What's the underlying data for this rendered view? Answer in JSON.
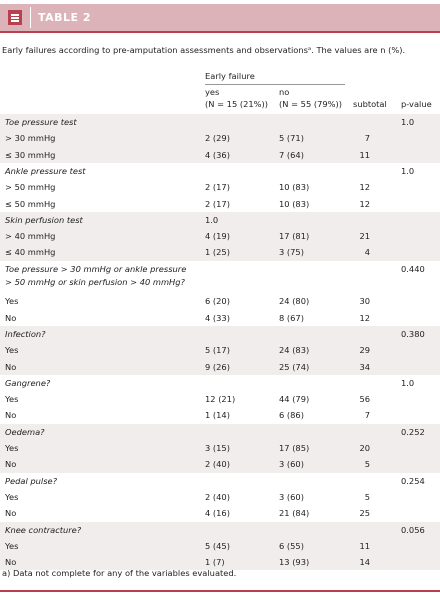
{
  "header": {
    "title": "TABLE 2"
  },
  "caption": "Early failures according to pre-amputation assessments and observationsᵃ. The values are n (%).",
  "table": {
    "column_group": "Early failure",
    "columns": {
      "yes": [
        "yes",
        "(N = 15 (21%))"
      ],
      "no": [
        "no",
        "(N = 55 (79%))"
      ],
      "subtotal": "subtotal",
      "p": "p-value"
    },
    "groups": [
      {
        "title": [
          "Toe pressure test"
        ],
        "p": "1.0",
        "rows": [
          {
            "label": "> 30 mmHg",
            "yes": "2 (29)",
            "no": "5 (71)",
            "subtotal": "7"
          },
          {
            "label": "≤ 30 mmHg",
            "yes": "4 (36)",
            "no": "7 (64)",
            "subtotal": "11"
          }
        ]
      },
      {
        "title": [
          "Ankle pressure test"
        ],
        "p": "1.0",
        "rows": [
          {
            "label": "> 50 mmHg",
            "yes": "2 (17)",
            "no": "10 (83)",
            "subtotal": "12"
          },
          {
            "label": "≤ 50 mmHg",
            "yes": "2 (17)",
            "no": "10 (83)",
            "subtotal": "12"
          }
        ]
      },
      {
        "title": [
          "Skin perfusion test"
        ],
        "yes": "1.0",
        "rows": [
          {
            "label": "> 40 mmHg",
            "yes": "4 (19)",
            "no": "17 (81)",
            "subtotal": "21"
          },
          {
            "label": "≤ 40 mmHg",
            "yes": "1 (25)",
            "no": "3 (75)",
            "subtotal": "4"
          }
        ]
      },
      {
        "title": [
          "Toe pressure > 30 mmHg or ankle pressure",
          "> 50 mmHg or skin perfusion > 40 mmHg?"
        ],
        "p": "0.440",
        "rows": [
          {
            "label": "Yes",
            "yes": "6 (20)",
            "no": "24 (80)",
            "subtotal": "30"
          },
          {
            "label": "No",
            "yes": "4 (33)",
            "no": "8 (67)",
            "subtotal": "12"
          }
        ]
      },
      {
        "title": [
          "Infection?"
        ],
        "p": "0.380",
        "rows": [
          {
            "label": "Yes",
            "yes": "5 (17)",
            "no": "24 (83)",
            "subtotal": "29"
          },
          {
            "label": "No",
            "yes": "9 (26)",
            "no": "25 (74)",
            "subtotal": "34"
          }
        ]
      },
      {
        "title": [
          "Gangrene?"
        ],
        "p": "1.0",
        "rows": [
          {
            "label": "Yes",
            "yes": "12 (21)",
            "no": "44 (79)",
            "subtotal": "56"
          },
          {
            "label": "No",
            "yes": "1 (14)",
            "no": "6 (86)",
            "subtotal": "7"
          }
        ]
      },
      {
        "title": [
          "Oedema?"
        ],
        "p": "0.252",
        "rows": [
          {
            "label": "Yes",
            "yes": "3 (15)",
            "no": "17 (85)",
            "subtotal": "20"
          },
          {
            "label": "No",
            "yes": "2 (40)",
            "no": "3 (60)",
            "subtotal": "5"
          }
        ]
      },
      {
        "title": [
          "Pedal pulse?"
        ],
        "p": "0.254",
        "rows": [
          {
            "label": "Yes",
            "yes": "2 (40)",
            "no": "3 (60)",
            "subtotal": "5"
          },
          {
            "label": "No",
            "yes": "4 (16)",
            "no": "21 (84)",
            "subtotal": "25"
          }
        ]
      },
      {
        "title": [
          "Knee contracture?"
        ],
        "p": "0.056",
        "rows": [
          {
            "label": "Yes",
            "yes": "5 (45)",
            "no": "6 (55)",
            "subtotal": "11"
          },
          {
            "label": "No",
            "yes": "1 (7)",
            "no": "13 (93)",
            "subtotal": "14"
          }
        ]
      }
    ]
  },
  "footnote": "a) Data not complete for any of the variables evaluated."
}
